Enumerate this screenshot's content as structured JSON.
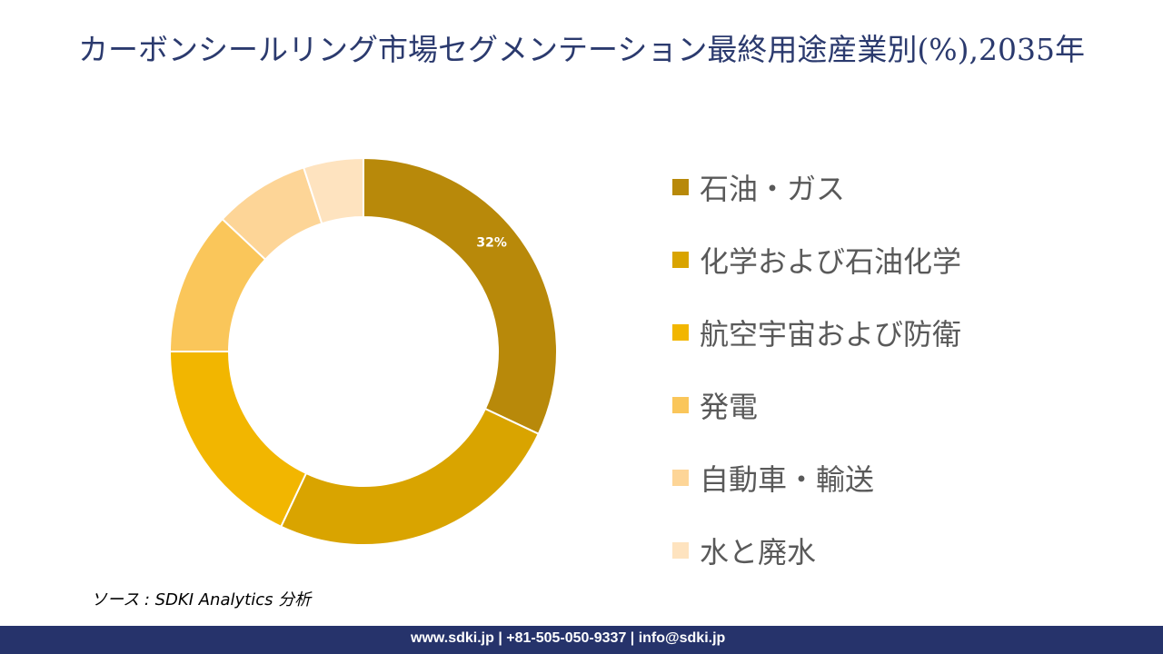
{
  "title": "カーボンシールリング市場セグメンテーション最終用途産業別(%),2035年",
  "chart_data": {
    "type": "pie",
    "variant": "donut",
    "title": "カーボンシールリング市場セグメンテーション最終用途産業別(%),2035年",
    "categories": [
      "石油・ガス",
      "化学および石油化学",
      "航空宇宙および防衛",
      "発電",
      "自動車・輸送",
      "水と廃水"
    ],
    "values": [
      32,
      25,
      18,
      12,
      8,
      5
    ],
    "colors": [
      "#B8890A",
      "#D9A400",
      "#F2B600",
      "#FAC65A",
      "#FDD597",
      "#FEE3BF"
    ],
    "data_labels": [
      "32%",
      "",
      "",
      "",
      "",
      ""
    ],
    "legend_position": "right"
  },
  "source": "ソース : SDKI Analytics 分析",
  "footer": "www.sdki.jp | +81-505-050-9337 | info@sdki.jp"
}
